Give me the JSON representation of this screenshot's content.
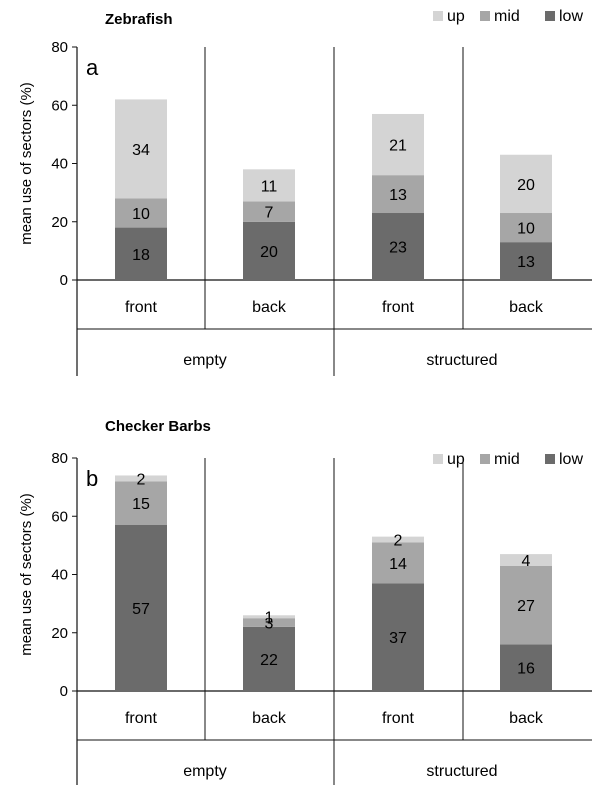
{
  "chart_data": [
    {
      "type": "bar",
      "stacked": true,
      "panel_label": "a",
      "title": "Zebrafish",
      "ylabel": "mean use of sectors (%)",
      "ylim": [
        0,
        80
      ],
      "yticks": [
        0,
        20,
        40,
        60,
        80
      ],
      "legend": {
        "placement": "top-right",
        "entries": [
          "up",
          "mid",
          "low"
        ]
      },
      "categories": [
        "front",
        "back",
        "front",
        "back"
      ],
      "groups": [
        {
          "label": "empty",
          "categories": [
            0,
            1
          ]
        },
        {
          "label": "structured",
          "categories": [
            2,
            3
          ]
        }
      ],
      "series": [
        {
          "name": "low",
          "values": [
            18,
            20,
            23,
            13
          ]
        },
        {
          "name": "mid",
          "values": [
            10,
            7,
            13,
            10
          ]
        },
        {
          "name": "up",
          "values": [
            34,
            11,
            21,
            20
          ]
        }
      ]
    },
    {
      "type": "bar",
      "stacked": true,
      "panel_label": "b",
      "title": "Checker Barbs",
      "ylabel": "mean use of sectors (%)",
      "ylim": [
        0,
        80
      ],
      "yticks": [
        0,
        20,
        40,
        60,
        80
      ],
      "legend": {
        "placement": "top-right",
        "entries": [
          "up",
          "mid",
          "low"
        ]
      },
      "categories": [
        "front",
        "back",
        "front",
        "back"
      ],
      "groups": [
        {
          "label": "empty",
          "categories": [
            0,
            1
          ]
        },
        {
          "label": "structured",
          "categories": [
            2,
            3
          ]
        }
      ],
      "series": [
        {
          "name": "low",
          "values": [
            57,
            22,
            37,
            16
          ]
        },
        {
          "name": "mid",
          "values": [
            15,
            3,
            14,
            27
          ]
        },
        {
          "name": "up",
          "values": [
            2,
            1,
            2,
            4
          ]
        }
      ]
    }
  ],
  "colors": {
    "low": "#6b6b6b",
    "mid": "#a6a6a6",
    "up": "#d4d4d4",
    "axis": "#111111"
  }
}
